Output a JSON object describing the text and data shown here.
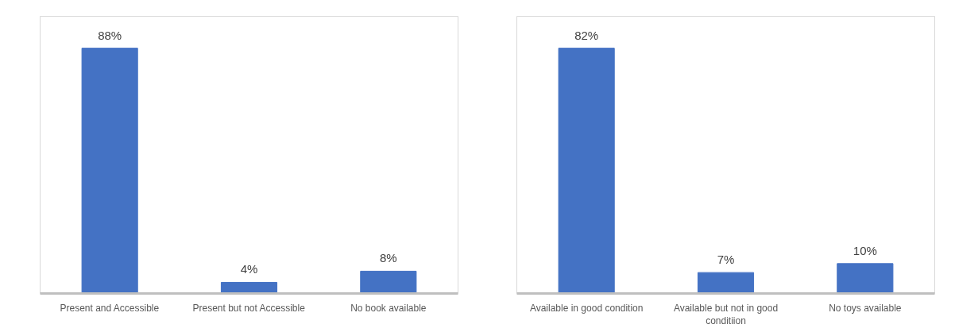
{
  "chart_data": [
    {
      "type": "bar",
      "categories": [
        "Present and Accessible",
        "Present but not Accessible",
        "No book available"
      ],
      "values": [
        88,
        4,
        8
      ],
      "color": "#4472c4",
      "data_labels": true,
      "value_labels": [
        "88%",
        "4%",
        "8%"
      ],
      "grid": false
    },
    {
      "type": "bar",
      "categories": [
        "Available in good condition",
        "Available but not in good conditiion",
        "No toys available"
      ],
      "values": [
        82,
        7,
        10
      ],
      "color": "#4472c4",
      "data_labels": true,
      "value_labels": [
        "82%",
        "7%",
        "10%"
      ],
      "grid": false
    }
  ]
}
